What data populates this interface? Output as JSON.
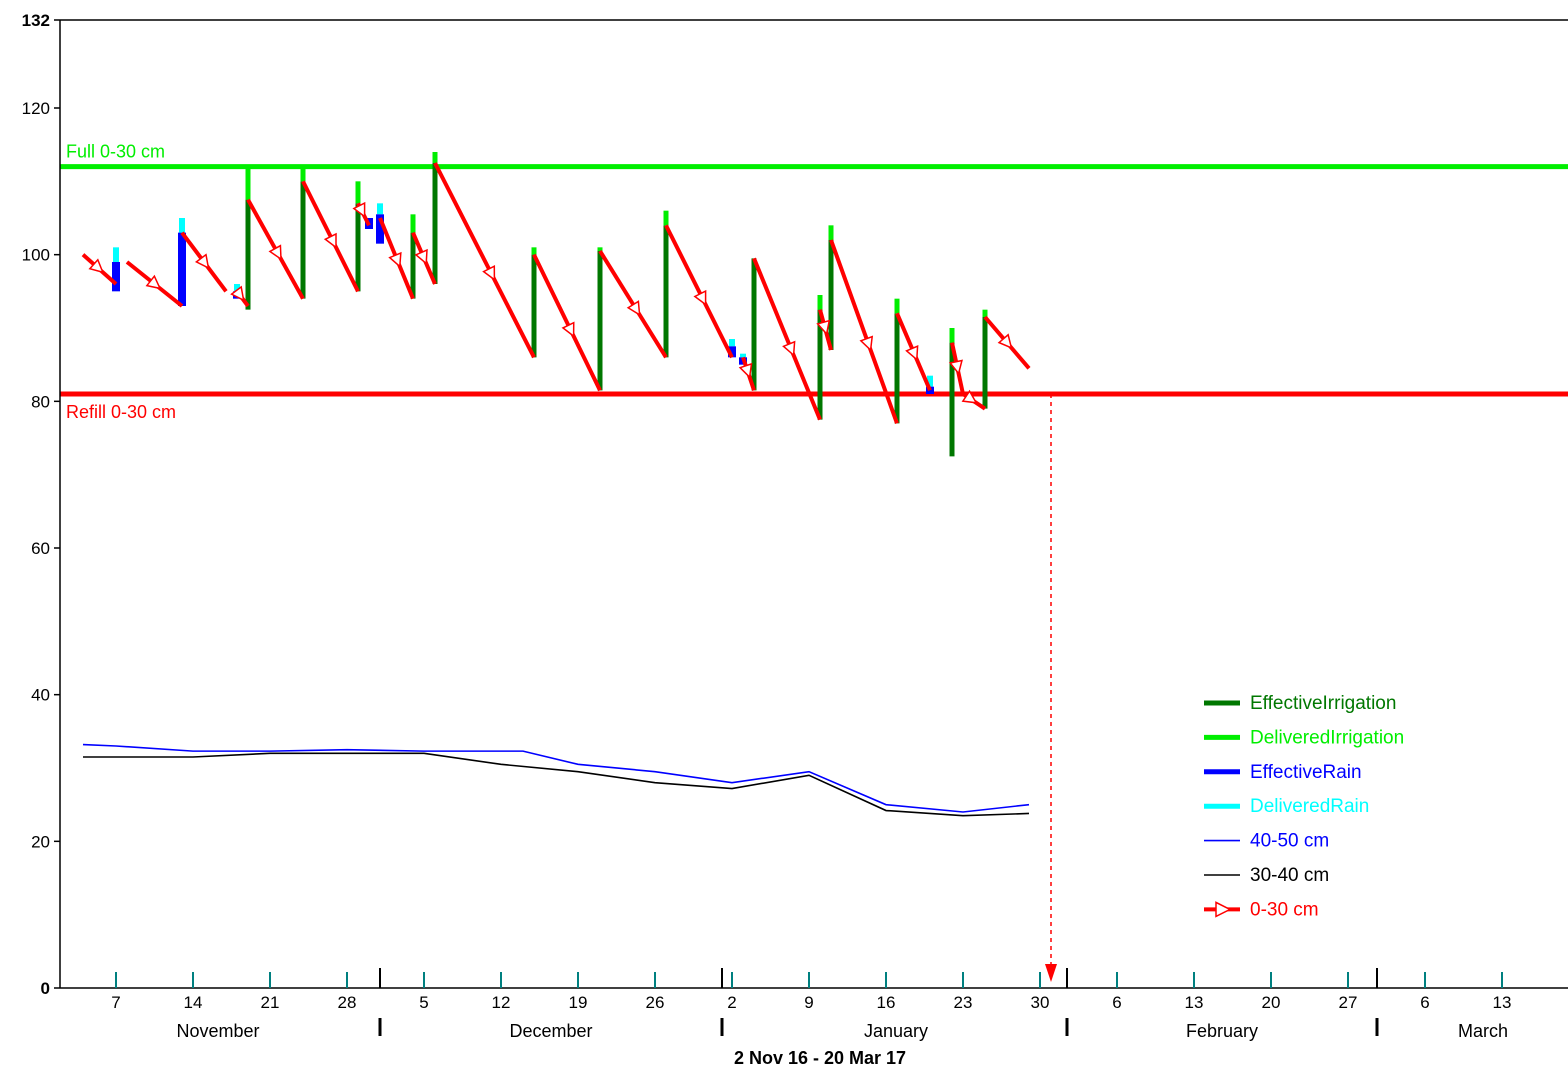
{
  "chart_data": {
    "type": "line",
    "x_range_label": "2 Nov 16 - 20 Mar 17",
    "ylim": [
      0,
      132
    ],
    "y_ticks": [
      0,
      20,
      40,
      60,
      80,
      100,
      120,
      132
    ],
    "grid": false,
    "legend_position": "bottom-right",
    "x_tick_days": [
      "7",
      "14",
      "21",
      "28",
      "5",
      "12",
      "19",
      "26",
      "2",
      "9",
      "16",
      "23",
      "30",
      "6",
      "13",
      "20",
      "27",
      "6",
      "13"
    ],
    "months": [
      "November",
      "December",
      "January",
      "February",
      "March"
    ],
    "reference_lines": [
      {
        "label": "Full 0-30 cm",
        "value": 112,
        "color": "#00ee00"
      },
      {
        "label": "Refill 0-30 cm",
        "value": 81,
        "color": "#ff0000"
      }
    ],
    "forecast_date": "2017-01-31",
    "legend": [
      {
        "label": "EffectiveIrrigation",
        "color": "#007700",
        "style": "thick"
      },
      {
        "label": "DeliveredIrrigation",
        "color": "#00ee00",
        "style": "thick"
      },
      {
        "label": "EffectiveRain",
        "color": "#0000ff",
        "style": "thick"
      },
      {
        "label": "DeliveredRain",
        "color": "#00ffff",
        "style": "thick"
      },
      {
        "label": "40-50 cm",
        "color": "#0000ff",
        "style": "thin"
      },
      {
        "label": "30-40 cm",
        "color": "#000000",
        "style": "thin"
      },
      {
        "label": "0-30 cm",
        "color": "#ff0000",
        "style": "arrow"
      }
    ],
    "series": [
      {
        "name": "0-30 cm",
        "color": "#ff0000",
        "segments": [
          [
            [
              "2016-11-04",
              100
            ],
            [
              "2016-11-07",
              96
            ]
          ],
          [
            [
              "2016-11-08",
              99
            ],
            [
              "2016-11-13",
              93
            ]
          ],
          [
            [
              "2016-11-13",
              103
            ],
            [
              "2016-11-17",
              95
            ]
          ],
          [
            [
              "2016-11-18",
              95
            ],
            [
              "2016-11-19",
              93
            ]
          ],
          [
            [
              "2016-11-19",
              107.5
            ],
            [
              "2016-11-24",
              94
            ]
          ],
          [
            [
              "2016-11-24",
              110
            ],
            [
              "2016-11-29",
              95
            ]
          ],
          [
            [
              "2016-11-29",
              107
            ],
            [
              "2016-11-30",
              104
            ]
          ],
          [
            [
              "2016-12-01",
              105
            ],
            [
              "2016-12-04",
              94
            ]
          ],
          [
            [
              "2016-12-04",
              103
            ],
            [
              "2016-12-06",
              96
            ]
          ],
          [
            [
              "2016-12-06",
              112.5
            ],
            [
              "2016-12-15",
              86
            ]
          ],
          [
            [
              "2016-12-15",
              100
            ],
            [
              "2016-12-21",
              81.5
            ]
          ],
          [
            [
              "2016-12-21",
              100.5
            ],
            [
              "2016-12-27",
              86
            ]
          ],
          [
            [
              "2016-12-27",
              104
            ],
            [
              "2017-01-02",
              86
            ]
          ],
          [
            [
              "2017-01-03",
              86
            ],
            [
              "2017-01-04",
              81.5
            ]
          ],
          [
            [
              "2017-01-04",
              99.5
            ],
            [
              "2017-01-10",
              77.5
            ]
          ],
          [
            [
              "2017-01-10",
              92.5
            ],
            [
              "2017-01-11",
              87
            ]
          ],
          [
            [
              "2017-01-11",
              102
            ],
            [
              "2017-01-17",
              77
            ]
          ],
          [
            [
              "2017-01-17",
              92
            ],
            [
              "2017-01-20",
              81.5
            ]
          ],
          [
            [
              "2017-01-22",
              88
            ],
            [
              "2017-01-23",
              81
            ]
          ],
          [
            [
              "2017-01-23",
              81
            ],
            [
              "2017-01-25",
              79
            ]
          ],
          [
            [
              "2017-01-25",
              91.5
            ],
            [
              "2017-01-29",
              84.5
            ]
          ]
        ]
      },
      {
        "name": "30-40 cm",
        "color": "#000000",
        "points": [
          [
            "2016-11-04",
            31.5
          ],
          [
            "2016-11-14",
            31.5
          ],
          [
            "2016-11-21",
            32
          ],
          [
            "2016-11-28",
            32
          ],
          [
            "2016-12-05",
            32
          ],
          [
            "2016-12-12",
            30.5
          ],
          [
            "2016-12-19",
            29.5
          ],
          [
            "2016-12-26",
            28
          ],
          [
            "2017-01-02",
            27.2
          ],
          [
            "2017-01-09",
            29
          ],
          [
            "2017-01-16",
            24.2
          ],
          [
            "2017-01-23",
            23.5
          ],
          [
            "2017-01-29",
            23.8
          ]
        ]
      },
      {
        "name": "40-50 cm",
        "color": "#0000ff",
        "points": [
          [
            "2016-11-04",
            33.2
          ],
          [
            "2016-11-07",
            33
          ],
          [
            "2016-11-14",
            32.3
          ],
          [
            "2016-11-21",
            32.3
          ],
          [
            "2016-11-28",
            32.5
          ],
          [
            "2016-12-05",
            32.3
          ],
          [
            "2016-12-14",
            32.3
          ],
          [
            "2016-12-19",
            30.5
          ],
          [
            "2016-12-26",
            29.5
          ],
          [
            "2017-01-02",
            28
          ],
          [
            "2017-01-09",
            29.5
          ],
          [
            "2017-01-16",
            25
          ],
          [
            "2017-01-23",
            24
          ],
          [
            "2017-01-29",
            25
          ]
        ]
      },
      {
        "name": "EffectiveIrrigation",
        "color": "#007700",
        "bars": [
          [
            "2016-11-19",
            92.5,
            107.5
          ],
          [
            "2016-11-24",
            94,
            110
          ],
          [
            "2016-11-29",
            95,
            107
          ],
          [
            "2016-12-04",
            94,
            103
          ],
          [
            "2016-12-06",
            96,
            112.5
          ],
          [
            "2016-12-15",
            86,
            100
          ],
          [
            "2016-12-21",
            81.5,
            100.5
          ],
          [
            "2016-12-27",
            86,
            104
          ],
          [
            "2017-01-04",
            81.5,
            99.5
          ],
          [
            "2017-01-10",
            77.5,
            92.5
          ],
          [
            "2017-01-11",
            87,
            102
          ],
          [
            "2017-01-17",
            77,
            92
          ],
          [
            "2017-01-22",
            72.5,
            88
          ],
          [
            "2017-01-25",
            79,
            91.5
          ]
        ]
      },
      {
        "name": "DeliveredIrrigation",
        "color": "#00ee00",
        "bars": [
          [
            "2016-11-19",
            107.5,
            112
          ],
          [
            "2016-11-24",
            110,
            112
          ],
          [
            "2016-11-29",
            107,
            110
          ],
          [
            "2016-12-04",
            103,
            105.5
          ],
          [
            "2016-12-06",
            112.5,
            114
          ],
          [
            "2016-12-15",
            100,
            101
          ],
          [
            "2016-12-21",
            100.5,
            101
          ],
          [
            "2016-12-27",
            104,
            106
          ],
          [
            "2017-01-10",
            92.5,
            94.5
          ],
          [
            "2017-01-11",
            102,
            104
          ],
          [
            "2017-01-17",
            92,
            94
          ],
          [
            "2017-01-22",
            88,
            90
          ],
          [
            "2017-01-25",
            91.5,
            92.5
          ]
        ]
      },
      {
        "name": "EffectiveRain",
        "color": "#0000ff",
        "bars": [
          [
            "2016-11-07",
            95,
            99
          ],
          [
            "2016-11-13",
            93,
            103
          ],
          [
            "2016-11-18",
            94,
            95
          ],
          [
            "2016-11-30",
            103.5,
            105
          ],
          [
            "2016-12-01",
            101.5,
            105.5
          ],
          [
            "2017-01-02",
            86,
            87.5
          ],
          [
            "2017-01-03",
            85,
            86
          ],
          [
            "2017-01-20",
            81,
            82
          ]
        ]
      },
      {
        "name": "DeliveredRain",
        "color": "#00ffff",
        "bars": [
          [
            "2016-11-07",
            99,
            101
          ],
          [
            "2016-11-13",
            103,
            105
          ],
          [
            "2016-11-18",
            95,
            96
          ],
          [
            "2016-12-01",
            105.5,
            107
          ],
          [
            "2017-01-02",
            87.5,
            88.5
          ],
          [
            "2017-01-03",
            86,
            86.5
          ],
          [
            "2017-01-20",
            82,
            83.5
          ]
        ]
      }
    ]
  }
}
